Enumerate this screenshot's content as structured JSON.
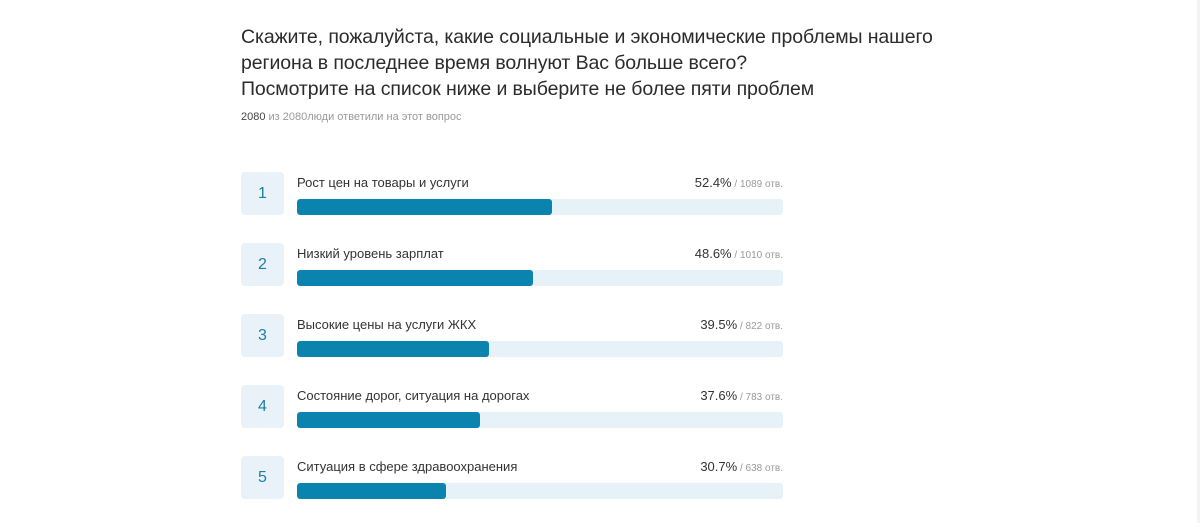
{
  "question": {
    "lines": [
      "Скажите, пожалуйста, какие социальные и экономические проблемы нашего",
      "региона в последнее время волнуют Вас больше всего?",
      "Посмотрите на список ниже и выберите не более пяти проблем"
    ],
    "answered": "2080",
    "answered_text": " из 2080люди ответили на этот вопрос"
  },
  "colors": {
    "bar": "#0a84af",
    "track": "#e7f2f8",
    "badge_bg": "#e8f2f8",
    "badge_text": "#1b7fa7"
  },
  "chart_data": {
    "type": "bar",
    "orientation": "horizontal",
    "title": "Скажите, пожалуйста, какие социальные и экономические проблемы нашего региона в последнее время волнуют Вас больше всего? Посмотрите на список ниже и выберите не более пяти проблем",
    "subtitle": "2080 из 2080люди ответили на этот вопрос",
    "xlim": [
      0,
      100
    ],
    "unit": "%",
    "categories": [
      "Рост цен на товары и услуги",
      "Низкий уровень зарплат",
      "Высокие цены на услуги ЖКХ",
      "Состояние дорог, ситуация на дорогах",
      "Ситуация в сфере здравоохранения"
    ],
    "values": [
      52.4,
      48.6,
      39.5,
      37.6,
      30.7
    ],
    "counts": [
      1089,
      1010,
      822,
      783,
      638
    ]
  },
  "items": [
    {
      "rank": "1",
      "label": "Рост цен на товары и услуги",
      "pct": "52.4%",
      "count": " / 1089 отв.",
      "width": "52.4%"
    },
    {
      "rank": "2",
      "label": "Низкий уровень зарплат",
      "pct": "48.6%",
      "count": " / 1010 отв.",
      "width": "48.6%"
    },
    {
      "rank": "3",
      "label": "Высокие цены на услуги ЖКХ",
      "pct": "39.5%",
      "count": " / 822 отв.",
      "width": "39.5%"
    },
    {
      "rank": "4",
      "label": "Состояние дорог, ситуация на дорогах",
      "pct": "37.6%",
      "count": " / 783 отв.",
      "width": "37.6%"
    },
    {
      "rank": "5",
      "label": "Ситуация в сфере здравоохранения",
      "pct": "30.7%",
      "count": " / 638 отв.",
      "width": "30.7%"
    }
  ]
}
